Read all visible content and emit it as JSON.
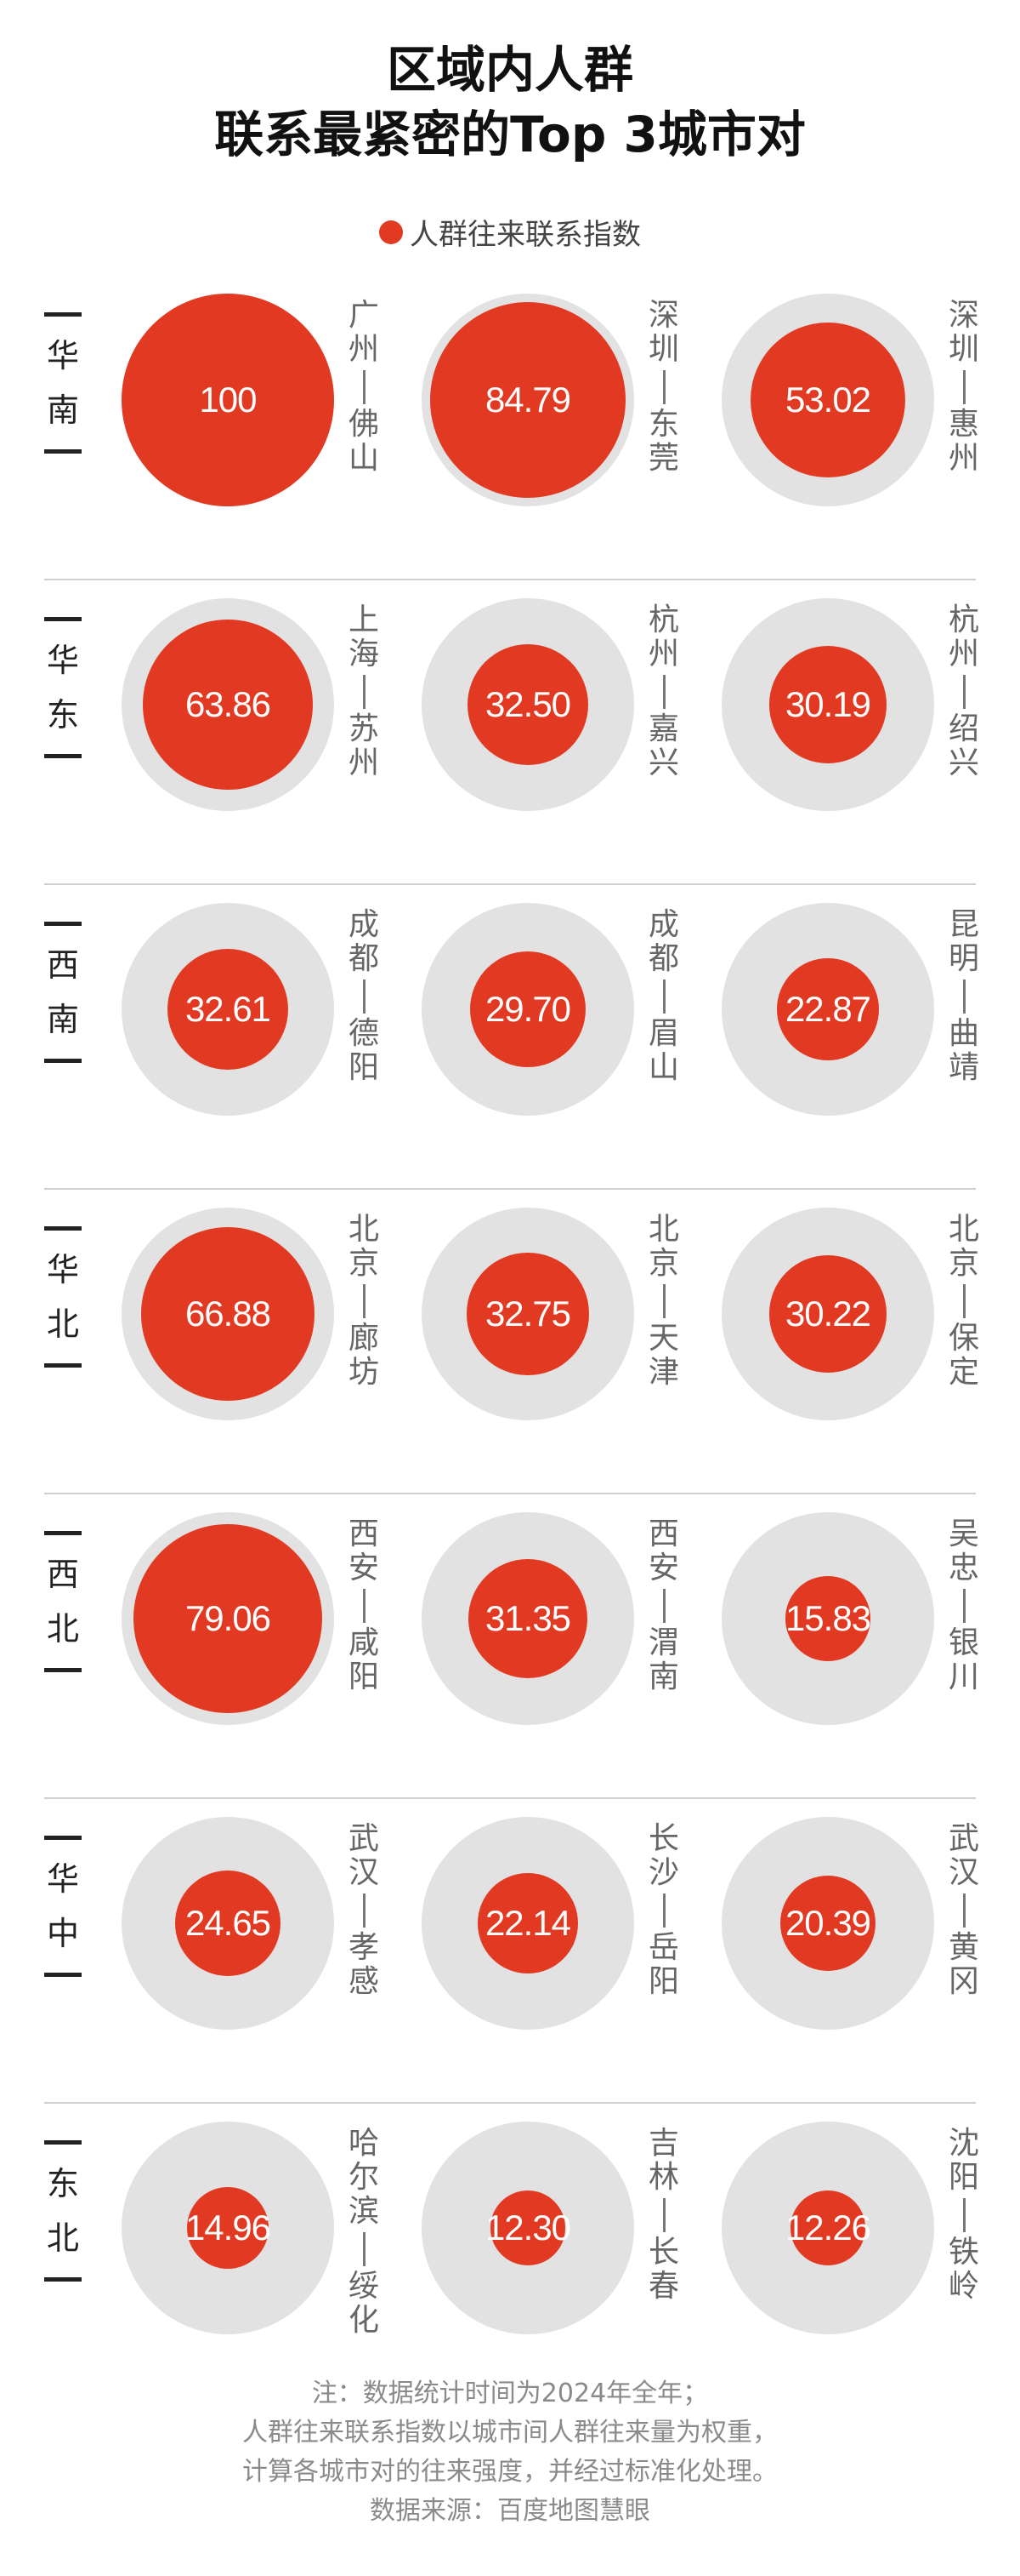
{
  "title_lines": [
    "区域内人群",
    "联系最紧密的Top 3城市对"
  ],
  "legend": {
    "label": "人群往来联系指数",
    "color": "#e23a22"
  },
  "colors": {
    "accent": "#e23a22",
    "ring": "#e2e2e2"
  },
  "chart_data": {
    "type": "bubble-grid",
    "title": "区域内人群联系最紧密的Top 3城市对",
    "series_name": "人群往来联系指数",
    "max_value": 100,
    "regions": [
      {
        "name": "华南",
        "pairs": [
          {
            "city_a": "广州",
            "city_b": "佛山",
            "value": 100,
            "label": "100"
          },
          {
            "city_a": "深圳",
            "city_b": "东莞",
            "value": 84.79,
            "label": "84.79"
          },
          {
            "city_a": "深圳",
            "city_b": "惠州",
            "value": 53.02,
            "label": "53.02"
          }
        ]
      },
      {
        "name": "华东",
        "pairs": [
          {
            "city_a": "上海",
            "city_b": "苏州",
            "value": 63.86,
            "label": "63.86"
          },
          {
            "city_a": "杭州",
            "city_b": "嘉兴",
            "value": 32.5,
            "label": "32.50"
          },
          {
            "city_a": "杭州",
            "city_b": "绍兴",
            "value": 30.19,
            "label": "30.19"
          }
        ]
      },
      {
        "name": "西南",
        "pairs": [
          {
            "city_a": "成都",
            "city_b": "德阳",
            "value": 32.61,
            "label": "32.61"
          },
          {
            "city_a": "成都",
            "city_b": "眉山",
            "value": 29.7,
            "label": "29.70"
          },
          {
            "city_a": "昆明",
            "city_b": "曲靖",
            "value": 22.87,
            "label": "22.87"
          }
        ]
      },
      {
        "name": "华北",
        "pairs": [
          {
            "city_a": "北京",
            "city_b": "廊坊",
            "value": 66.88,
            "label": "66.88"
          },
          {
            "city_a": "北京",
            "city_b": "天津",
            "value": 32.75,
            "label": "32.75"
          },
          {
            "city_a": "北京",
            "city_b": "保定",
            "value": 30.22,
            "label": "30.22"
          }
        ]
      },
      {
        "name": "西北",
        "pairs": [
          {
            "city_a": "西安",
            "city_b": "咸阳",
            "value": 79.06,
            "label": "79.06"
          },
          {
            "city_a": "西安",
            "city_b": "渭南",
            "value": 31.35,
            "label": "31.35"
          },
          {
            "city_a": "吴忠",
            "city_b": "银川",
            "value": 15.83,
            "label": "15.83"
          }
        ]
      },
      {
        "name": "华中",
        "pairs": [
          {
            "city_a": "武汉",
            "city_b": "孝感",
            "value": 24.65,
            "label": "24.65"
          },
          {
            "city_a": "长沙",
            "city_b": "岳阳",
            "value": 22.14,
            "label": "22.14"
          },
          {
            "city_a": "武汉",
            "city_b": "黄冈",
            "value": 20.39,
            "label": "20.39"
          }
        ]
      },
      {
        "name": "东北",
        "pairs": [
          {
            "city_a": "哈尔滨",
            "city_b": "绥化",
            "value": 14.96,
            "label": "14.96"
          },
          {
            "city_a": "吉林",
            "city_b": "长春",
            "value": 12.3,
            "label": "12.30"
          },
          {
            "city_a": "沈阳",
            "city_b": "铁岭",
            "value": 12.26,
            "label": "12.26"
          }
        ]
      }
    ]
  },
  "notes": [
    "注：数据统计时间为2024年全年；",
    "人群往来联系指数以城市间人群往来量为权重，",
    "计算各城市对的往来强度，并经过标准化处理。",
    "数据来源：百度地图慧眼"
  ]
}
